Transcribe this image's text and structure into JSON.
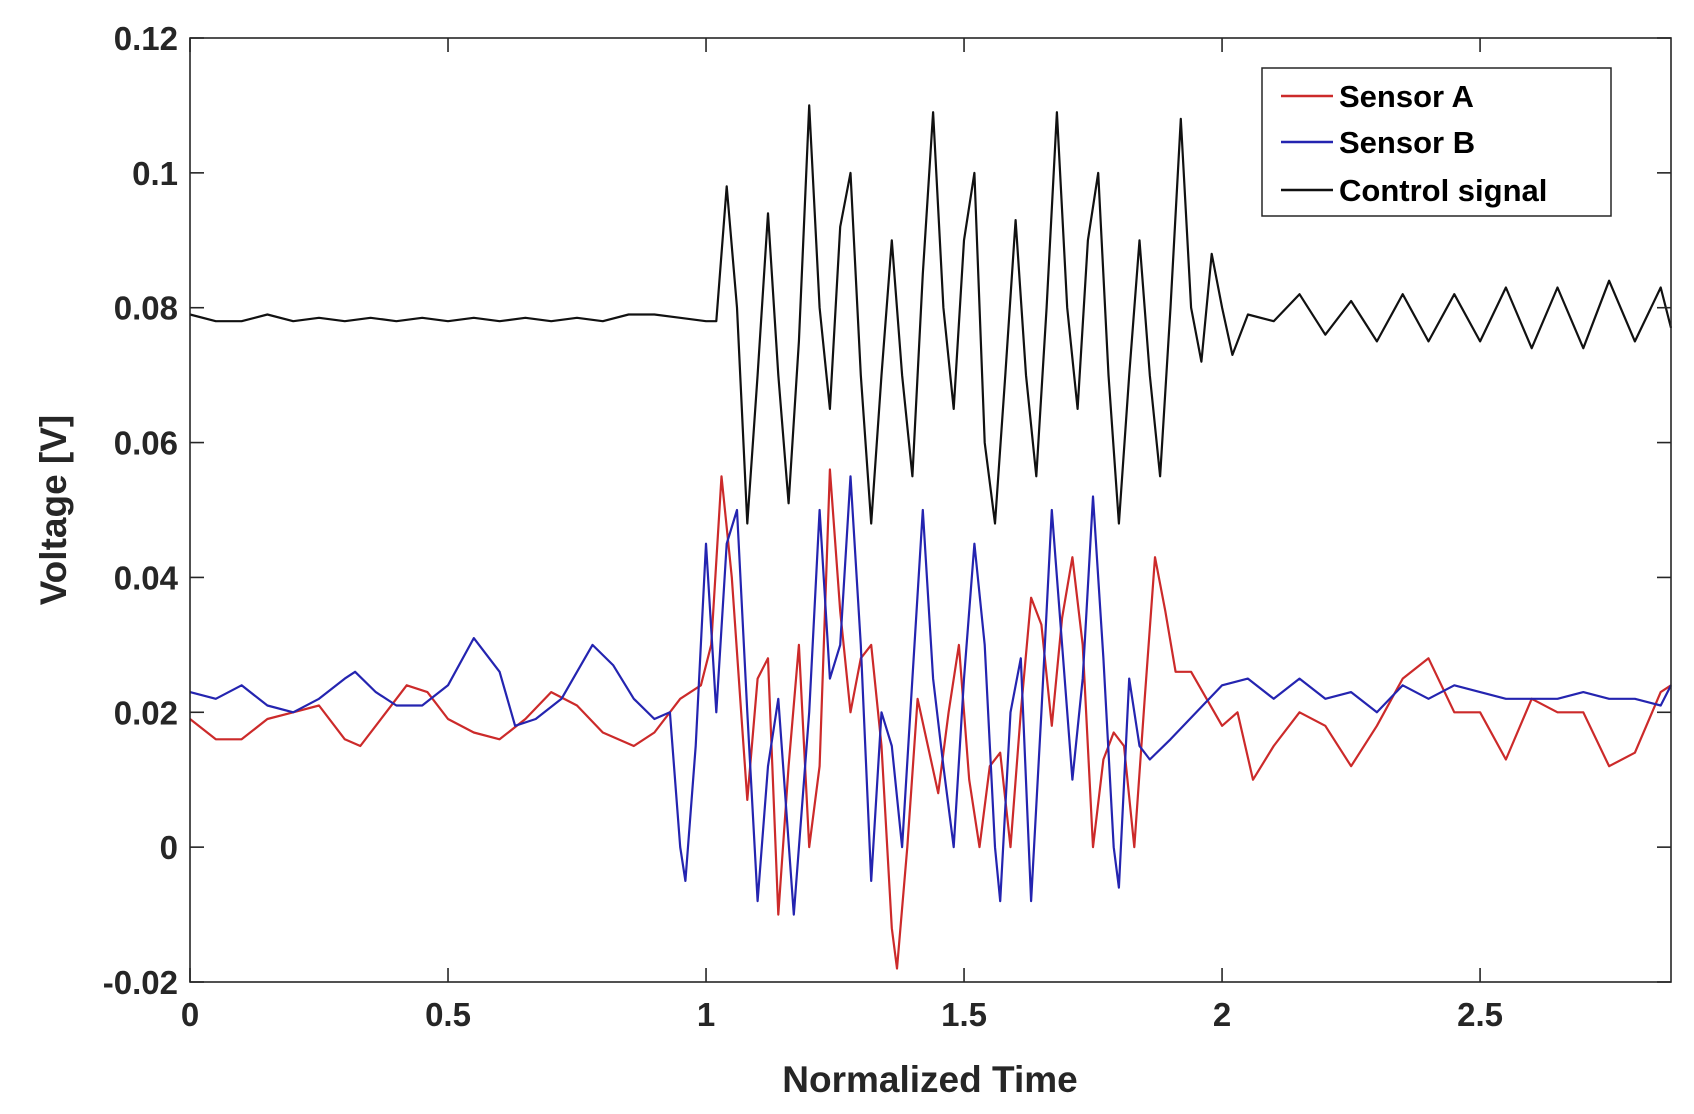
{
  "chart_data": {
    "type": "line",
    "title": "",
    "xlabel": "Normalized Time",
    "ylabel": "Voltage [V]",
    "xlim": [
      0,
      2.87
    ],
    "ylim": [
      -0.02,
      0.12
    ],
    "xticks": [
      0,
      0.5,
      1,
      1.5,
      2,
      2.5
    ],
    "xtick_labels": [
      "0",
      "0.5",
      "1",
      "1.5",
      "2",
      "2.5"
    ],
    "yticks": [
      -0.02,
      0,
      0.02,
      0.04,
      0.06,
      0.08,
      0.1,
      0.12
    ],
    "ytick_labels": [
      "-0.02",
      "0",
      "0.02",
      "0.04",
      "0.06",
      "0.08",
      "0.1",
      "0.12"
    ],
    "grid": false,
    "legend_position": "top-right",
    "series": [
      {
        "name": "Sensor A",
        "color": "#cc2a2a",
        "points": [
          [
            0,
            0.019
          ],
          [
            0.05,
            0.016
          ],
          [
            0.1,
            0.016
          ],
          [
            0.15,
            0.019
          ],
          [
            0.2,
            0.02
          ],
          [
            0.25,
            0.021
          ],
          [
            0.3,
            0.016
          ],
          [
            0.33,
            0.015
          ],
          [
            0.38,
            0.02
          ],
          [
            0.42,
            0.024
          ],
          [
            0.46,
            0.023
          ],
          [
            0.5,
            0.019
          ],
          [
            0.55,
            0.017
          ],
          [
            0.6,
            0.016
          ],
          [
            0.65,
            0.019
          ],
          [
            0.7,
            0.023
          ],
          [
            0.75,
            0.021
          ],
          [
            0.8,
            0.017
          ],
          [
            0.86,
            0.015
          ],
          [
            0.9,
            0.017
          ],
          [
            0.95,
            0.022
          ],
          [
            0.99,
            0.024
          ],
          [
            1.01,
            0.03
          ],
          [
            1.03,
            0.055
          ],
          [
            1.05,
            0.04
          ],
          [
            1.07,
            0.018
          ],
          [
            1.08,
            0.007
          ],
          [
            1.1,
            0.025
          ],
          [
            1.12,
            0.028
          ],
          [
            1.14,
            -0.01
          ],
          [
            1.16,
            0.012
          ],
          [
            1.18,
            0.03
          ],
          [
            1.2,
            0.0
          ],
          [
            1.22,
            0.012
          ],
          [
            1.24,
            0.056
          ],
          [
            1.26,
            0.035
          ],
          [
            1.28,
            0.02
          ],
          [
            1.3,
            0.028
          ],
          [
            1.32,
            0.03
          ],
          [
            1.34,
            0.015
          ],
          [
            1.36,
            -0.012
          ],
          [
            1.37,
            -0.018
          ],
          [
            1.39,
            0.0
          ],
          [
            1.41,
            0.022
          ],
          [
            1.43,
            0.015
          ],
          [
            1.45,
            0.008
          ],
          [
            1.47,
            0.02
          ],
          [
            1.49,
            0.03
          ],
          [
            1.51,
            0.01
          ],
          [
            1.53,
            0.0
          ],
          [
            1.55,
            0.012
          ],
          [
            1.57,
            0.014
          ],
          [
            1.59,
            0.0
          ],
          [
            1.61,
            0.02
          ],
          [
            1.63,
            0.037
          ],
          [
            1.65,
            0.033
          ],
          [
            1.67,
            0.018
          ],
          [
            1.69,
            0.034
          ],
          [
            1.71,
            0.043
          ],
          [
            1.73,
            0.03
          ],
          [
            1.75,
            0.0
          ],
          [
            1.77,
            0.013
          ],
          [
            1.79,
            0.017
          ],
          [
            1.81,
            0.015
          ],
          [
            1.83,
            0.0
          ],
          [
            1.85,
            0.022
          ],
          [
            1.87,
            0.043
          ],
          [
            1.89,
            0.035
          ],
          [
            1.91,
            0.026
          ],
          [
            1.94,
            0.026
          ],
          [
            1.97,
            0.022
          ],
          [
            2.0,
            0.018
          ],
          [
            2.03,
            0.02
          ],
          [
            2.06,
            0.01
          ],
          [
            2.1,
            0.015
          ],
          [
            2.15,
            0.02
          ],
          [
            2.2,
            0.018
          ],
          [
            2.25,
            0.012
          ],
          [
            2.3,
            0.018
          ],
          [
            2.35,
            0.025
          ],
          [
            2.4,
            0.028
          ],
          [
            2.45,
            0.02
          ],
          [
            2.5,
            0.02
          ],
          [
            2.55,
            0.013
          ],
          [
            2.6,
            0.022
          ],
          [
            2.65,
            0.02
          ],
          [
            2.7,
            0.02
          ],
          [
            2.75,
            0.012
          ],
          [
            2.8,
            0.014
          ],
          [
            2.85,
            0.023
          ],
          [
            2.87,
            0.024
          ]
        ]
      },
      {
        "name": "Sensor B",
        "color": "#2424b0",
        "points": [
          [
            0,
            0.023
          ],
          [
            0.05,
            0.022
          ],
          [
            0.1,
            0.024
          ],
          [
            0.15,
            0.021
          ],
          [
            0.2,
            0.02
          ],
          [
            0.25,
            0.022
          ],
          [
            0.3,
            0.025
          ],
          [
            0.32,
            0.026
          ],
          [
            0.36,
            0.023
          ],
          [
            0.4,
            0.021
          ],
          [
            0.45,
            0.021
          ],
          [
            0.5,
            0.024
          ],
          [
            0.55,
            0.031
          ],
          [
            0.6,
            0.026
          ],
          [
            0.63,
            0.018
          ],
          [
            0.67,
            0.019
          ],
          [
            0.72,
            0.022
          ],
          [
            0.78,
            0.03
          ],
          [
            0.82,
            0.027
          ],
          [
            0.86,
            0.022
          ],
          [
            0.9,
            0.019
          ],
          [
            0.93,
            0.02
          ],
          [
            0.95,
            0.0
          ],
          [
            0.96,
            -0.005
          ],
          [
            0.98,
            0.015
          ],
          [
            1.0,
            0.045
          ],
          [
            1.02,
            0.02
          ],
          [
            1.04,
            0.045
          ],
          [
            1.06,
            0.05
          ],
          [
            1.08,
            0.02
          ],
          [
            1.1,
            -0.008
          ],
          [
            1.12,
            0.012
          ],
          [
            1.14,
            0.022
          ],
          [
            1.17,
            -0.01
          ],
          [
            1.2,
            0.02
          ],
          [
            1.22,
            0.05
          ],
          [
            1.24,
            0.025
          ],
          [
            1.26,
            0.03
          ],
          [
            1.28,
            0.055
          ],
          [
            1.3,
            0.03
          ],
          [
            1.32,
            -0.005
          ],
          [
            1.34,
            0.02
          ],
          [
            1.36,
            0.015
          ],
          [
            1.38,
            0.0
          ],
          [
            1.4,
            0.025
          ],
          [
            1.42,
            0.05
          ],
          [
            1.44,
            0.025
          ],
          [
            1.46,
            0.012
          ],
          [
            1.48,
            0.0
          ],
          [
            1.5,
            0.025
          ],
          [
            1.52,
            0.045
          ],
          [
            1.54,
            0.03
          ],
          [
            1.56,
            0.0
          ],
          [
            1.57,
            -0.008
          ],
          [
            1.59,
            0.02
          ],
          [
            1.61,
            0.028
          ],
          [
            1.63,
            -0.008
          ],
          [
            1.65,
            0.02
          ],
          [
            1.67,
            0.05
          ],
          [
            1.69,
            0.03
          ],
          [
            1.71,
            0.01
          ],
          [
            1.73,
            0.025
          ],
          [
            1.75,
            0.052
          ],
          [
            1.77,
            0.028
          ],
          [
            1.79,
            0.0
          ],
          [
            1.8,
            -0.006
          ],
          [
            1.82,
            0.025
          ],
          [
            1.84,
            0.015
          ],
          [
            1.86,
            0.013
          ],
          [
            1.9,
            0.016
          ],
          [
            1.95,
            0.02
          ],
          [
            2.0,
            0.024
          ],
          [
            2.05,
            0.025
          ],
          [
            2.1,
            0.022
          ],
          [
            2.15,
            0.025
          ],
          [
            2.2,
            0.022
          ],
          [
            2.25,
            0.023
          ],
          [
            2.3,
            0.02
          ],
          [
            2.35,
            0.024
          ],
          [
            2.4,
            0.022
          ],
          [
            2.45,
            0.024
          ],
          [
            2.5,
            0.023
          ],
          [
            2.55,
            0.022
          ],
          [
            2.6,
            0.022
          ],
          [
            2.65,
            0.022
          ],
          [
            2.7,
            0.023
          ],
          [
            2.75,
            0.022
          ],
          [
            2.8,
            0.022
          ],
          [
            2.85,
            0.021
          ],
          [
            2.87,
            0.024
          ]
        ]
      },
      {
        "name": "Control signal",
        "color": "#111111",
        "points": [
          [
            0,
            0.079
          ],
          [
            0.05,
            0.078
          ],
          [
            0.1,
            0.078
          ],
          [
            0.15,
            0.079
          ],
          [
            0.2,
            0.078
          ],
          [
            0.25,
            0.0785
          ],
          [
            0.3,
            0.078
          ],
          [
            0.35,
            0.0785
          ],
          [
            0.4,
            0.078
          ],
          [
            0.45,
            0.0785
          ],
          [
            0.5,
            0.078
          ],
          [
            0.55,
            0.0785
          ],
          [
            0.6,
            0.078
          ],
          [
            0.65,
            0.0785
          ],
          [
            0.7,
            0.078
          ],
          [
            0.75,
            0.0785
          ],
          [
            0.8,
            0.078
          ],
          [
            0.85,
            0.079
          ],
          [
            0.9,
            0.079
          ],
          [
            0.95,
            0.0785
          ],
          [
            1.0,
            0.078
          ],
          [
            1.02,
            0.078
          ],
          [
            1.04,
            0.098
          ],
          [
            1.06,
            0.08
          ],
          [
            1.08,
            0.048
          ],
          [
            1.1,
            0.07
          ],
          [
            1.12,
            0.094
          ],
          [
            1.14,
            0.07
          ],
          [
            1.16,
            0.051
          ],
          [
            1.18,
            0.075
          ],
          [
            1.2,
            0.11
          ],
          [
            1.22,
            0.08
          ],
          [
            1.24,
            0.065
          ],
          [
            1.26,
            0.092
          ],
          [
            1.28,
            0.1
          ],
          [
            1.3,
            0.07
          ],
          [
            1.32,
            0.048
          ],
          [
            1.34,
            0.07
          ],
          [
            1.36,
            0.09
          ],
          [
            1.38,
            0.07
          ],
          [
            1.4,
            0.055
          ],
          [
            1.42,
            0.085
          ],
          [
            1.44,
            0.109
          ],
          [
            1.46,
            0.08
          ],
          [
            1.48,
            0.065
          ],
          [
            1.5,
            0.09
          ],
          [
            1.52,
            0.1
          ],
          [
            1.54,
            0.06
          ],
          [
            1.56,
            0.048
          ],
          [
            1.58,
            0.07
          ],
          [
            1.6,
            0.093
          ],
          [
            1.62,
            0.07
          ],
          [
            1.64,
            0.055
          ],
          [
            1.66,
            0.08
          ],
          [
            1.68,
            0.109
          ],
          [
            1.7,
            0.08
          ],
          [
            1.72,
            0.065
          ],
          [
            1.74,
            0.09
          ],
          [
            1.76,
            0.1
          ],
          [
            1.78,
            0.07
          ],
          [
            1.8,
            0.048
          ],
          [
            1.82,
            0.07
          ],
          [
            1.84,
            0.09
          ],
          [
            1.86,
            0.07
          ],
          [
            1.88,
            0.055
          ],
          [
            1.9,
            0.08
          ],
          [
            1.92,
            0.108
          ],
          [
            1.94,
            0.08
          ],
          [
            1.96,
            0.072
          ],
          [
            1.98,
            0.088
          ],
          [
            2.0,
            0.08
          ],
          [
            2.02,
            0.073
          ],
          [
            2.05,
            0.079
          ],
          [
            2.1,
            0.078
          ],
          [
            2.15,
            0.082
          ],
          [
            2.2,
            0.076
          ],
          [
            2.25,
            0.081
          ],
          [
            2.3,
            0.075
          ],
          [
            2.35,
            0.082
          ],
          [
            2.4,
            0.075
          ],
          [
            2.45,
            0.082
          ],
          [
            2.5,
            0.075
          ],
          [
            2.55,
            0.083
          ],
          [
            2.6,
            0.074
          ],
          [
            2.65,
            0.083
          ],
          [
            2.7,
            0.074
          ],
          [
            2.75,
            0.084
          ],
          [
            2.8,
            0.075
          ],
          [
            2.85,
            0.083
          ],
          [
            2.87,
            0.077
          ]
        ]
      }
    ]
  }
}
